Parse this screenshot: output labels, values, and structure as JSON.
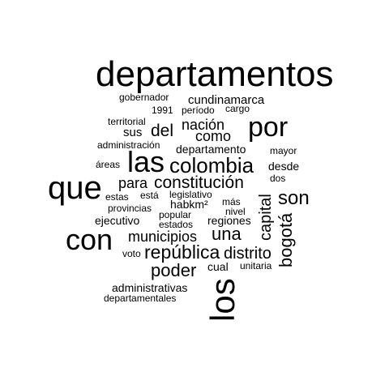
{
  "text_color": "#000000",
  "background_color": "#ffffff",
  "words": [
    {
      "text": "departamentos"
    },
    {
      "text": "gobernador"
    },
    {
      "text": "cundinamarca"
    },
    {
      "text": "1991"
    },
    {
      "text": "período"
    },
    {
      "text": "cargo"
    },
    {
      "text": "territorial"
    },
    {
      "text": "nación"
    },
    {
      "text": "por"
    },
    {
      "text": "sus"
    },
    {
      "text": "del"
    },
    {
      "text": "como"
    },
    {
      "text": "administración"
    },
    {
      "text": "departamento"
    },
    {
      "text": "mayor"
    },
    {
      "text": "áreas"
    },
    {
      "text": "las"
    },
    {
      "text": "colombia"
    },
    {
      "text": "desde"
    },
    {
      "text": "dos"
    },
    {
      "text": "que"
    },
    {
      "text": "para"
    },
    {
      "text": "constitución"
    },
    {
      "text": "estas"
    },
    {
      "text": "está"
    },
    {
      "text": "legislativo"
    },
    {
      "text": "capital"
    },
    {
      "text": "son"
    },
    {
      "text": "habkm²"
    },
    {
      "text": "más"
    },
    {
      "text": "provincias"
    },
    {
      "text": "nivel"
    },
    {
      "text": "popular"
    },
    {
      "text": "ejecutivo"
    },
    {
      "text": "estados"
    },
    {
      "text": "regiones"
    },
    {
      "text": "bogotá"
    },
    {
      "text": "con"
    },
    {
      "text": "municipios"
    },
    {
      "text": "una"
    },
    {
      "text": "voto"
    },
    {
      "text": "república"
    },
    {
      "text": "distrito"
    },
    {
      "text": "poder"
    },
    {
      "text": "cual"
    },
    {
      "text": "unitaria"
    },
    {
      "text": "los"
    },
    {
      "text": "administrativas"
    },
    {
      "text": "departamentales"
    }
  ]
}
